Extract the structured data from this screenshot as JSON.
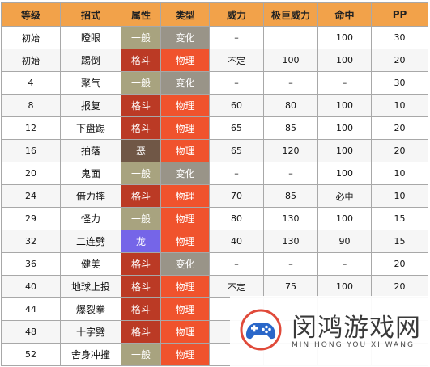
{
  "colors": {
    "header_bg": "#f2a24a",
    "type_normal": "#a8a37f",
    "type_fighting": "#bb3a25",
    "type_dark": "#705746",
    "type_dragon": "#7565e8",
    "cat_status": "#999488",
    "cat_physical": "#f0532d"
  },
  "table": {
    "headers": [
      "等级",
      "招式",
      "属性",
      "类型",
      "威力",
      "极巨威力",
      "命中",
      "PP"
    ],
    "rows": [
      {
        "level": "初始",
        "move": "瞪眼",
        "type": "一般",
        "type_color": "#a8a37f",
        "category": "变化",
        "cat_color": "#999488",
        "power": "–",
        "max_power": "",
        "accuracy": "100",
        "pp": "30"
      },
      {
        "level": "初始",
        "move": "踢倒",
        "type": "格斗",
        "type_color": "#bb3a25",
        "category": "物理",
        "cat_color": "#f0532d",
        "power": "不定",
        "max_power": "100",
        "accuracy": "100",
        "pp": "20"
      },
      {
        "level": "4",
        "move": "聚气",
        "type": "一般",
        "type_color": "#a8a37f",
        "category": "变化",
        "cat_color": "#999488",
        "power": "–",
        "max_power": "–",
        "accuracy": "–",
        "pp": "30"
      },
      {
        "level": "8",
        "move": "报复",
        "type": "格斗",
        "type_color": "#bb3a25",
        "category": "物理",
        "cat_color": "#f0532d",
        "power": "60",
        "max_power": "80",
        "accuracy": "100",
        "pp": "10"
      },
      {
        "level": "12",
        "move": "下盘踢",
        "type": "格斗",
        "type_color": "#bb3a25",
        "category": "物理",
        "cat_color": "#f0532d",
        "power": "65",
        "max_power": "85",
        "accuracy": "100",
        "pp": "20"
      },
      {
        "level": "16",
        "move": "拍落",
        "type": "恶",
        "type_color": "#705746",
        "category": "物理",
        "cat_color": "#f0532d",
        "power": "65",
        "max_power": "120",
        "accuracy": "100",
        "pp": "20"
      },
      {
        "level": "20",
        "move": "鬼面",
        "type": "一般",
        "type_color": "#a8a37f",
        "category": "变化",
        "cat_color": "#999488",
        "power": "–",
        "max_power": "–",
        "accuracy": "100",
        "pp": "10"
      },
      {
        "level": "24",
        "move": "借力摔",
        "type": "格斗",
        "type_color": "#bb3a25",
        "category": "物理",
        "cat_color": "#f0532d",
        "power": "70",
        "max_power": "85",
        "accuracy": "必中",
        "pp": "10"
      },
      {
        "level": "29",
        "move": "怪力",
        "type": "一般",
        "type_color": "#a8a37f",
        "category": "物理",
        "cat_color": "#f0532d",
        "power": "80",
        "max_power": "130",
        "accuracy": "100",
        "pp": "15"
      },
      {
        "level": "32",
        "move": "二连劈",
        "type": "龙",
        "type_color": "#7565e8",
        "category": "物理",
        "cat_color": "#f0532d",
        "power": "40",
        "max_power": "130",
        "accuracy": "90",
        "pp": "15"
      },
      {
        "level": "36",
        "move": "健美",
        "type": "格斗",
        "type_color": "#bb3a25",
        "category": "变化",
        "cat_color": "#999488",
        "power": "–",
        "max_power": "–",
        "accuracy": "–",
        "pp": "20"
      },
      {
        "level": "40",
        "move": "地球上投",
        "type": "格斗",
        "type_color": "#bb3a25",
        "category": "物理",
        "cat_color": "#f0532d",
        "power": "不定",
        "max_power": "75",
        "accuracy": "100",
        "pp": "20"
      },
      {
        "level": "44",
        "move": "爆裂拳",
        "type": "格斗",
        "type_color": "#bb3a25",
        "category": "物理",
        "cat_color": "#f0532d",
        "power": "",
        "max_power": "",
        "accuracy": "",
        "pp": ""
      },
      {
        "level": "48",
        "move": "十字劈",
        "type": "格斗",
        "type_color": "#bb3a25",
        "category": "物理",
        "cat_color": "#f0532d",
        "power": "",
        "max_power": "",
        "accuracy": "",
        "pp": ""
      },
      {
        "level": "52",
        "move": "舍身冲撞",
        "type": "一般",
        "type_color": "#a8a37f",
        "category": "物理",
        "cat_color": "#f0532d",
        "power": "",
        "max_power": "",
        "accuracy": "",
        "pp": ""
      }
    ]
  },
  "watermark": {
    "title": "闵鸿游戏网",
    "subtitle": "MIN HONG YOU XI WANG",
    "logo_icon": "game-controller-icon"
  }
}
